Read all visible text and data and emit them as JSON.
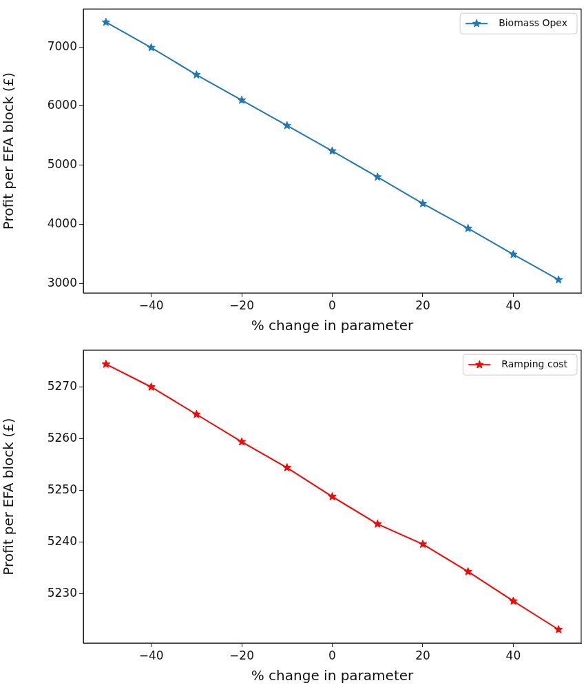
{
  "chart_data": [
    {
      "type": "line",
      "xlabel": "% change in parameter",
      "ylabel": "Profit per EFA block (£)",
      "x": [
        -50,
        -40,
        -30,
        -20,
        -10,
        0,
        10,
        20,
        30,
        40,
        50
      ],
      "series": [
        {
          "name": "Biomass Opex",
          "color": "#1f77b4",
          "values": [
            7420,
            6990,
            6530,
            6100,
            5670,
            5240,
            4800,
            4350,
            3930,
            3490,
            3060
          ]
        }
      ],
      "xlim": [
        -55,
        55
      ],
      "xticks": [
        -40,
        -20,
        0,
        20,
        40
      ],
      "ylim": [
        2838,
        7642
      ],
      "yticks": [
        3000,
        4000,
        5000,
        6000,
        7000
      ],
      "marker": "star",
      "legend": "top right"
    },
    {
      "type": "line",
      "xlabel": "% change in parameter",
      "ylabel": "Profit per EFA block (£)",
      "x": [
        -50,
        -40,
        -30,
        -20,
        -10,
        0,
        10,
        20,
        30,
        40,
        50
      ],
      "series": [
        {
          "name": "Ramping cost",
          "color": "#ff0000",
          "values": [
            5274.4,
            5270.0,
            5264.7,
            5259.4,
            5254.4,
            5248.8,
            5243.5,
            5239.6,
            5234.3,
            5228.6,
            5223.1
          ]
        }
      ],
      "xlim": [
        -55,
        55
      ],
      "xticks": [
        -40,
        -20,
        0,
        20,
        40
      ],
      "ylim": [
        5220.5,
        5277.1
      ],
      "yticks": [
        5230,
        5240,
        5250,
        5260,
        5270
      ],
      "marker": "star",
      "legend": "top right"
    }
  ]
}
